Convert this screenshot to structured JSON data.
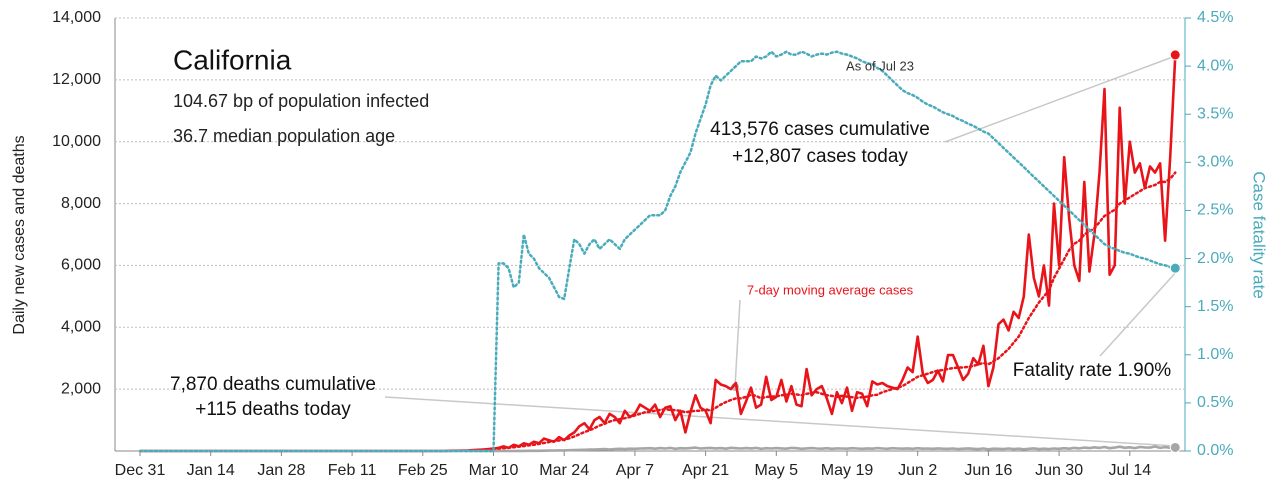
{
  "chart_data": {
    "type": "line",
    "ylabel": "Daily new cases and deaths",
    "y2label": "Case fatality rate",
    "annotations": [
      "California",
      "104.67 bp of population infected",
      "36.7 median population age",
      "As of Jul 23",
      "413,576 cases cumulative",
      "+12,807 cases today",
      "7,870 deaths cumulative",
      "+115 deaths today",
      "Fatality rate 1.90%",
      "7-day moving average cases"
    ],
    "ylim": [
      0,
      14000
    ],
    "yticks": [
      {
        "value": 2000,
        "label": "2,000"
      },
      {
        "value": 4000,
        "label": "4,000"
      },
      {
        "value": 6000,
        "label": "6,000"
      },
      {
        "value": 8000,
        "label": "8,000"
      },
      {
        "value": 10000,
        "label": "10,000"
      },
      {
        "value": 12000,
        "label": "12,000"
      },
      {
        "value": 14000,
        "label": "14,000"
      }
    ],
    "y2lim": [
      0,
      4.5
    ],
    "y2ticks": [
      {
        "value": 0,
        "label": "0.0%"
      },
      {
        "value": 0.5,
        "label": "0.5%"
      },
      {
        "value": 1,
        "label": "1.0%"
      },
      {
        "value": 1.5,
        "label": "1.5%"
      },
      {
        "value": 2,
        "label": "2.0%"
      },
      {
        "value": 2.5,
        "label": "2.5%"
      },
      {
        "value": 3,
        "label": "3.0%"
      },
      {
        "value": 3.5,
        "label": "3.5%"
      },
      {
        "value": 4,
        "label": "4.0%"
      },
      {
        "value": 4.5,
        "label": "4.5%"
      }
    ],
    "grid": true,
    "categories": [
      "Dec 31",
      null,
      null,
      null,
      null,
      null,
      null,
      null,
      null,
      null,
      null,
      null,
      null,
      null,
      "Jan 14",
      null,
      null,
      null,
      null,
      null,
      null,
      null,
      null,
      null,
      null,
      null,
      null,
      null,
      "Jan 28",
      null,
      null,
      null,
      null,
      null,
      null,
      null,
      null,
      null,
      null,
      null,
      null,
      null,
      "Feb 11",
      null,
      null,
      null,
      null,
      null,
      null,
      null,
      null,
      null,
      null,
      null,
      null,
      null,
      "Feb 25",
      null,
      null,
      null,
      null,
      null,
      null,
      null,
      null,
      null,
      null,
      null,
      null,
      null,
      "Mar 10",
      null,
      null,
      null,
      null,
      null,
      null,
      null,
      null,
      null,
      null,
      null,
      null,
      null,
      "Mar 24",
      null,
      null,
      null,
      null,
      null,
      null,
      null,
      null,
      null,
      null,
      null,
      null,
      null,
      "Apr 7",
      null,
      null,
      null,
      null,
      null,
      null,
      null,
      null,
      null,
      null,
      null,
      null,
      null,
      "Apr 21",
      null,
      null,
      null,
      null,
      null,
      null,
      null,
      null,
      null,
      null,
      null,
      null,
      null,
      "May 5",
      null,
      null,
      null,
      null,
      null,
      null,
      null,
      null,
      null,
      null,
      null,
      null,
      null,
      "May 19",
      null,
      null,
      null,
      null,
      null,
      null,
      null,
      null,
      null,
      null,
      null,
      null,
      null,
      "Jun 2",
      null,
      null,
      null,
      null,
      null,
      null,
      null,
      null,
      null,
      null,
      null,
      null,
      null,
      "Jun 16",
      null,
      null,
      null,
      null,
      null,
      null,
      null,
      null,
      null,
      null,
      null,
      null,
      null,
      "Jun 30",
      null,
      null,
      null,
      null,
      null,
      null,
      null,
      null,
      null,
      null,
      null,
      null,
      null,
      "Jul 14",
      null,
      null,
      null,
      null,
      null,
      null,
      null,
      null,
      null
    ],
    "series": [
      {
        "color": "#e8141a",
        "line_style": "solid",
        "end_marker": true,
        "values": [
          0,
          0,
          0,
          0,
          0,
          0,
          0,
          0,
          0,
          0,
          0,
          0,
          0,
          0,
          0,
          0,
          0,
          0,
          0,
          0,
          0,
          0,
          0,
          0,
          0,
          0,
          0,
          0,
          0,
          0,
          0,
          0,
          0,
          0,
          0,
          0,
          0,
          0,
          0,
          0,
          0,
          0,
          0,
          0,
          0,
          0,
          0,
          0,
          0,
          0,
          0,
          0,
          0,
          0,
          0,
          0,
          0,
          0,
          0,
          0,
          0,
          5,
          10,
          10,
          15,
          20,
          30,
          40,
          50,
          60,
          80,
          100,
          150,
          100,
          200,
          150,
          250,
          200,
          300,
          250,
          400,
          350,
          300,
          450,
          350,
          500,
          600,
          800,
          900,
          700,
          1000,
          1100,
          900,
          1200,
          1100,
          900,
          1300,
          1100,
          1200,
          1500,
          1400,
          1300,
          1500,
          1100,
          1400,
          1450,
          1000,
          1300,
          600,
          1250,
          1800,
          1400,
          1300,
          900,
          2300,
          2150,
          2100,
          2000,
          2200,
          1200,
          1600,
          2050,
          1400,
          1500,
          2400,
          1650,
          1750,
          2300,
          1600,
          2100,
          1500,
          1450,
          2650,
          1800,
          2000,
          2100,
          1700,
          1200,
          1900,
          1550,
          2050,
          1300,
          1900,
          1850,
          1450,
          2250,
          2150,
          2200,
          2100,
          2050,
          2000,
          2300,
          2700,
          2550,
          3700,
          2500,
          2200,
          2300,
          2600,
          2250,
          3100,
          3100,
          2700,
          2300,
          2500,
          3000,
          2800,
          3400,
          2100,
          2700,
          4100,
          4250,
          3900,
          4500,
          4300,
          5000,
          7000,
          5600,
          5000,
          6000,
          4700,
          8000,
          6000,
          9500,
          7500,
          6000,
          5500,
          8700,
          5800,
          7000,
          9000,
          11700,
          5700,
          6000,
          11100,
          8000,
          10000,
          9000,
          9300,
          8500,
          9200,
          9000,
          9300,
          6800,
          9500,
          12807
        ]
      },
      {
        "name": "7-day moving average cases",
        "color": "#e8141a",
        "line_style": "dotted",
        "end_marker": false,
        "values": [
          null,
          null,
          null,
          null,
          null,
          null,
          null,
          null,
          null,
          null,
          null,
          null,
          null,
          null,
          null,
          null,
          null,
          null,
          null,
          null,
          null,
          null,
          null,
          null,
          null,
          null,
          null,
          null,
          null,
          null,
          null,
          null,
          null,
          null,
          null,
          null,
          null,
          null,
          null,
          null,
          null,
          null,
          null,
          null,
          null,
          null,
          null,
          null,
          null,
          null,
          null,
          null,
          null,
          null,
          null,
          null,
          null,
          null,
          null,
          null,
          null,
          null,
          null,
          null,
          null,
          null,
          20,
          30,
          40,
          50,
          60,
          75,
          90,
          105,
          120,
          140,
          160,
          180,
          200,
          230,
          260,
          290,
          320,
          340,
          370,
          410,
          470,
          540,
          610,
          670,
          740,
          820,
          880,
          950,
          1000,
          1030,
          1060,
          1100,
          1150,
          1200,
          1250,
          1270,
          1300,
          1330,
          1350,
          1330,
          1320,
          1300,
          1250,
          1280,
          1300,
          1300,
          1350,
          1300,
          1400,
          1500,
          1580,
          1650,
          1700,
          1700,
          1750,
          1820,
          1780,
          1700,
          1750,
          1760,
          1770,
          1800,
          1820,
          1850,
          1830,
          1800,
          1850,
          1880,
          1900,
          1850,
          1800,
          1780,
          1750,
          1780,
          1760,
          1740,
          1720,
          1740,
          1760,
          1800,
          1820,
          1900,
          1950,
          2000,
          2050,
          2100,
          2200,
          2300,
          2400,
          2450,
          2500,
          2550,
          2600,
          2620,
          2650,
          2680,
          2700,
          2700,
          2720,
          2750,
          2800,
          2850,
          2800,
          2900,
          3000,
          3150,
          3300,
          3500,
          3700,
          4000,
          4300,
          4550,
          4800,
          5000,
          5200,
          5600,
          5900,
          6200,
          6500,
          6700,
          6800,
          7000,
          7100,
          7200,
          7400,
          7600,
          7700,
          7800,
          8000,
          8100,
          8200,
          8300,
          8400,
          8500,
          8550,
          8600,
          8700,
          8700,
          8800,
          9000
        ]
      },
      {
        "color": "#a6a6a6",
        "line_style": "solid",
        "end_marker": true,
        "values": [
          0,
          0,
          0,
          0,
          0,
          0,
          0,
          0,
          0,
          0,
          0,
          0,
          0,
          0,
          0,
          0,
          0,
          0,
          0,
          0,
          0,
          0,
          0,
          0,
          0,
          0,
          0,
          0,
          0,
          0,
          0,
          0,
          0,
          0,
          0,
          0,
          0,
          0,
          0,
          0,
          0,
          0,
          0,
          0,
          0,
          0,
          0,
          0,
          0,
          0,
          0,
          0,
          0,
          0,
          0,
          0,
          0,
          0,
          0,
          0,
          0,
          0,
          0,
          0,
          0,
          0,
          0,
          0,
          0,
          0,
          0,
          0,
          0,
          0,
          0,
          2,
          3,
          5,
          5,
          8,
          10,
          12,
          15,
          18,
          20,
          25,
          30,
          35,
          40,
          45,
          50,
          55,
          60,
          50,
          65,
          70,
          60,
          75,
          70,
          80,
          85,
          90,
          75,
          95,
          80,
          100,
          70,
          90,
          85,
          95,
          110,
          80,
          90,
          100,
          85,
          95,
          75,
          105,
          90,
          80,
          95,
          85,
          100,
          70,
          90,
          80,
          95,
          85,
          75,
          100,
          90,
          70,
          85,
          95,
          80,
          75,
          90,
          70,
          85,
          80,
          75,
          90,
          80,
          70,
          85,
          75,
          95,
          80,
          70,
          90,
          80,
          75,
          85,
          70,
          90,
          75,
          80,
          70,
          85,
          75,
          70,
          80,
          65,
          75,
          85,
          70,
          60,
          80,
          55,
          75,
          70,
          65,
          80,
          60,
          75,
          55,
          70,
          85,
          60,
          75,
          65,
          80,
          70,
          90,
          75,
          100,
          85,
          110,
          95,
          120,
          100,
          130,
          90,
          110,
          140,
          105,
          120,
          95,
          130,
          115,
          110,
          145,
          100,
          125,
          105,
          115
        ]
      },
      {
        "color": "#4aabbc",
        "line_style": "dotted",
        "end_marker": true,
        "axis": "y2",
        "values": [
          0,
          0,
          0,
          0,
          0,
          0,
          0,
          0,
          0,
          0,
          0,
          0,
          0,
          0,
          0,
          0,
          0,
          0,
          0,
          0,
          0,
          0,
          0,
          0,
          0,
          0,
          0,
          0,
          0,
          0,
          0,
          0,
          0,
          0,
          0,
          0,
          0,
          0,
          0,
          0,
          0,
          0,
          0,
          0,
          0,
          0,
          0,
          0,
          0,
          0,
          0,
          0,
          0,
          0,
          0,
          0,
          0,
          0,
          0,
          0,
          0,
          0,
          0,
          0,
          0,
          0,
          0,
          0,
          0,
          0,
          0,
          1.95,
          1.95,
          1.9,
          1.7,
          1.75,
          2.25,
          2.05,
          2.0,
          1.9,
          1.85,
          1.8,
          1.7,
          1.6,
          1.58,
          1.9,
          2.2,
          2.15,
          2.05,
          2.15,
          2.2,
          2.1,
          2.15,
          2.2,
          2.15,
          2.1,
          2.2,
          2.25,
          2.3,
          2.35,
          2.4,
          2.45,
          2.45,
          2.45,
          2.5,
          2.65,
          2.75,
          2.9,
          3.0,
          3.1,
          3.3,
          3.45,
          3.6,
          3.8,
          3.9,
          3.85,
          3.9,
          3.95,
          4.0,
          4.05,
          4.05,
          4.05,
          4.1,
          4.08,
          4.1,
          4.15,
          4.1,
          4.12,
          4.15,
          4.12,
          4.12,
          4.15,
          4.13,
          4.1,
          4.12,
          4.13,
          4.12,
          4.14,
          4.15,
          4.13,
          4.12,
          4.1,
          4.08,
          4.05,
          4.03,
          4.02,
          3.98,
          3.95,
          3.9,
          3.85,
          3.8,
          3.75,
          3.72,
          3.7,
          3.67,
          3.63,
          3.6,
          3.58,
          3.55,
          3.52,
          3.5,
          3.48,
          3.45,
          3.43,
          3.4,
          3.38,
          3.35,
          3.32,
          3.3,
          3.25,
          3.2,
          3.15,
          3.1,
          3.05,
          3.0,
          2.95,
          2.9,
          2.85,
          2.8,
          2.75,
          2.7,
          2.65,
          2.6,
          2.55,
          2.5,
          2.45,
          2.4,
          2.35,
          2.3,
          2.25,
          2.2,
          2.15,
          2.12,
          2.1,
          2.08,
          2.06,
          2.05,
          2.03,
          2.01,
          2.0,
          1.98,
          1.96,
          1.94,
          1.93,
          1.91,
          1.9
        ]
      }
    ]
  }
}
